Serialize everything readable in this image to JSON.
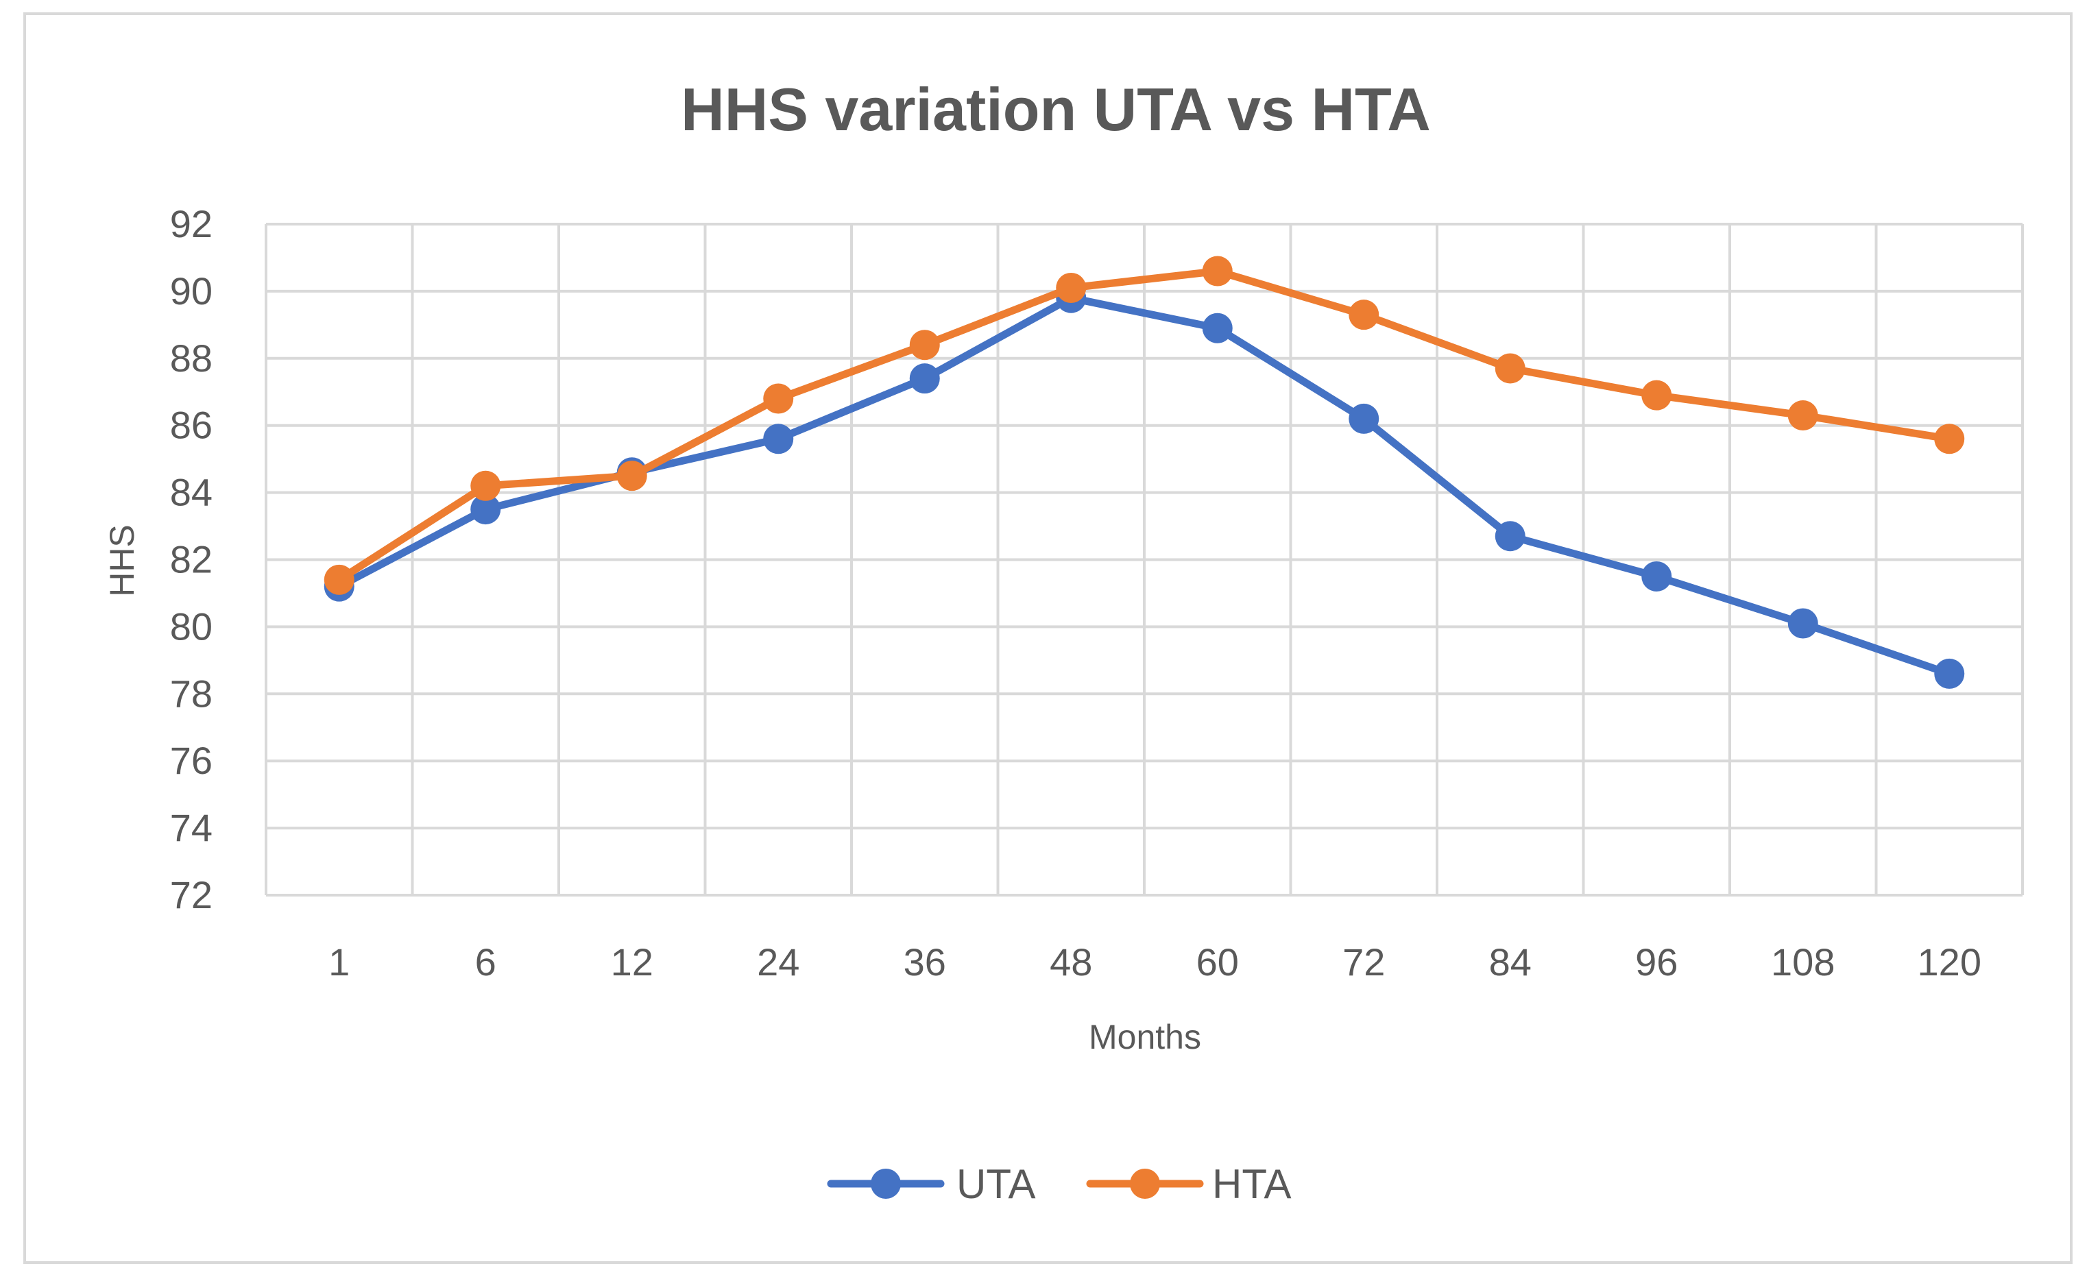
{
  "chart_data": {
    "type": "line",
    "title": "HHS variation UTA vs HTA",
    "xlabel": "Months",
    "ylabel": "HHS",
    "categories": [
      "1",
      "6",
      "12",
      "24",
      "36",
      "48",
      "60",
      "72",
      "84",
      "96",
      "108",
      "120"
    ],
    "ylim": [
      72,
      92
    ],
    "yticks": [
      72,
      74,
      76,
      78,
      80,
      82,
      84,
      86,
      88,
      90,
      92
    ],
    "grid": true,
    "legend": "bottom",
    "series": [
      {
        "name": "UTA",
        "color": "#4472c4",
        "values": [
          81.2,
          83.5,
          84.6,
          85.6,
          87.4,
          89.8,
          88.9,
          86.2,
          82.7,
          81.5,
          80.1,
          78.6
        ]
      },
      {
        "name": "HTA",
        "color": "#ed7d31",
        "values": [
          81.4,
          84.2,
          84.5,
          86.8,
          88.4,
          90.1,
          90.6,
          89.3,
          87.7,
          86.9,
          86.3,
          85.6
        ]
      }
    ]
  }
}
